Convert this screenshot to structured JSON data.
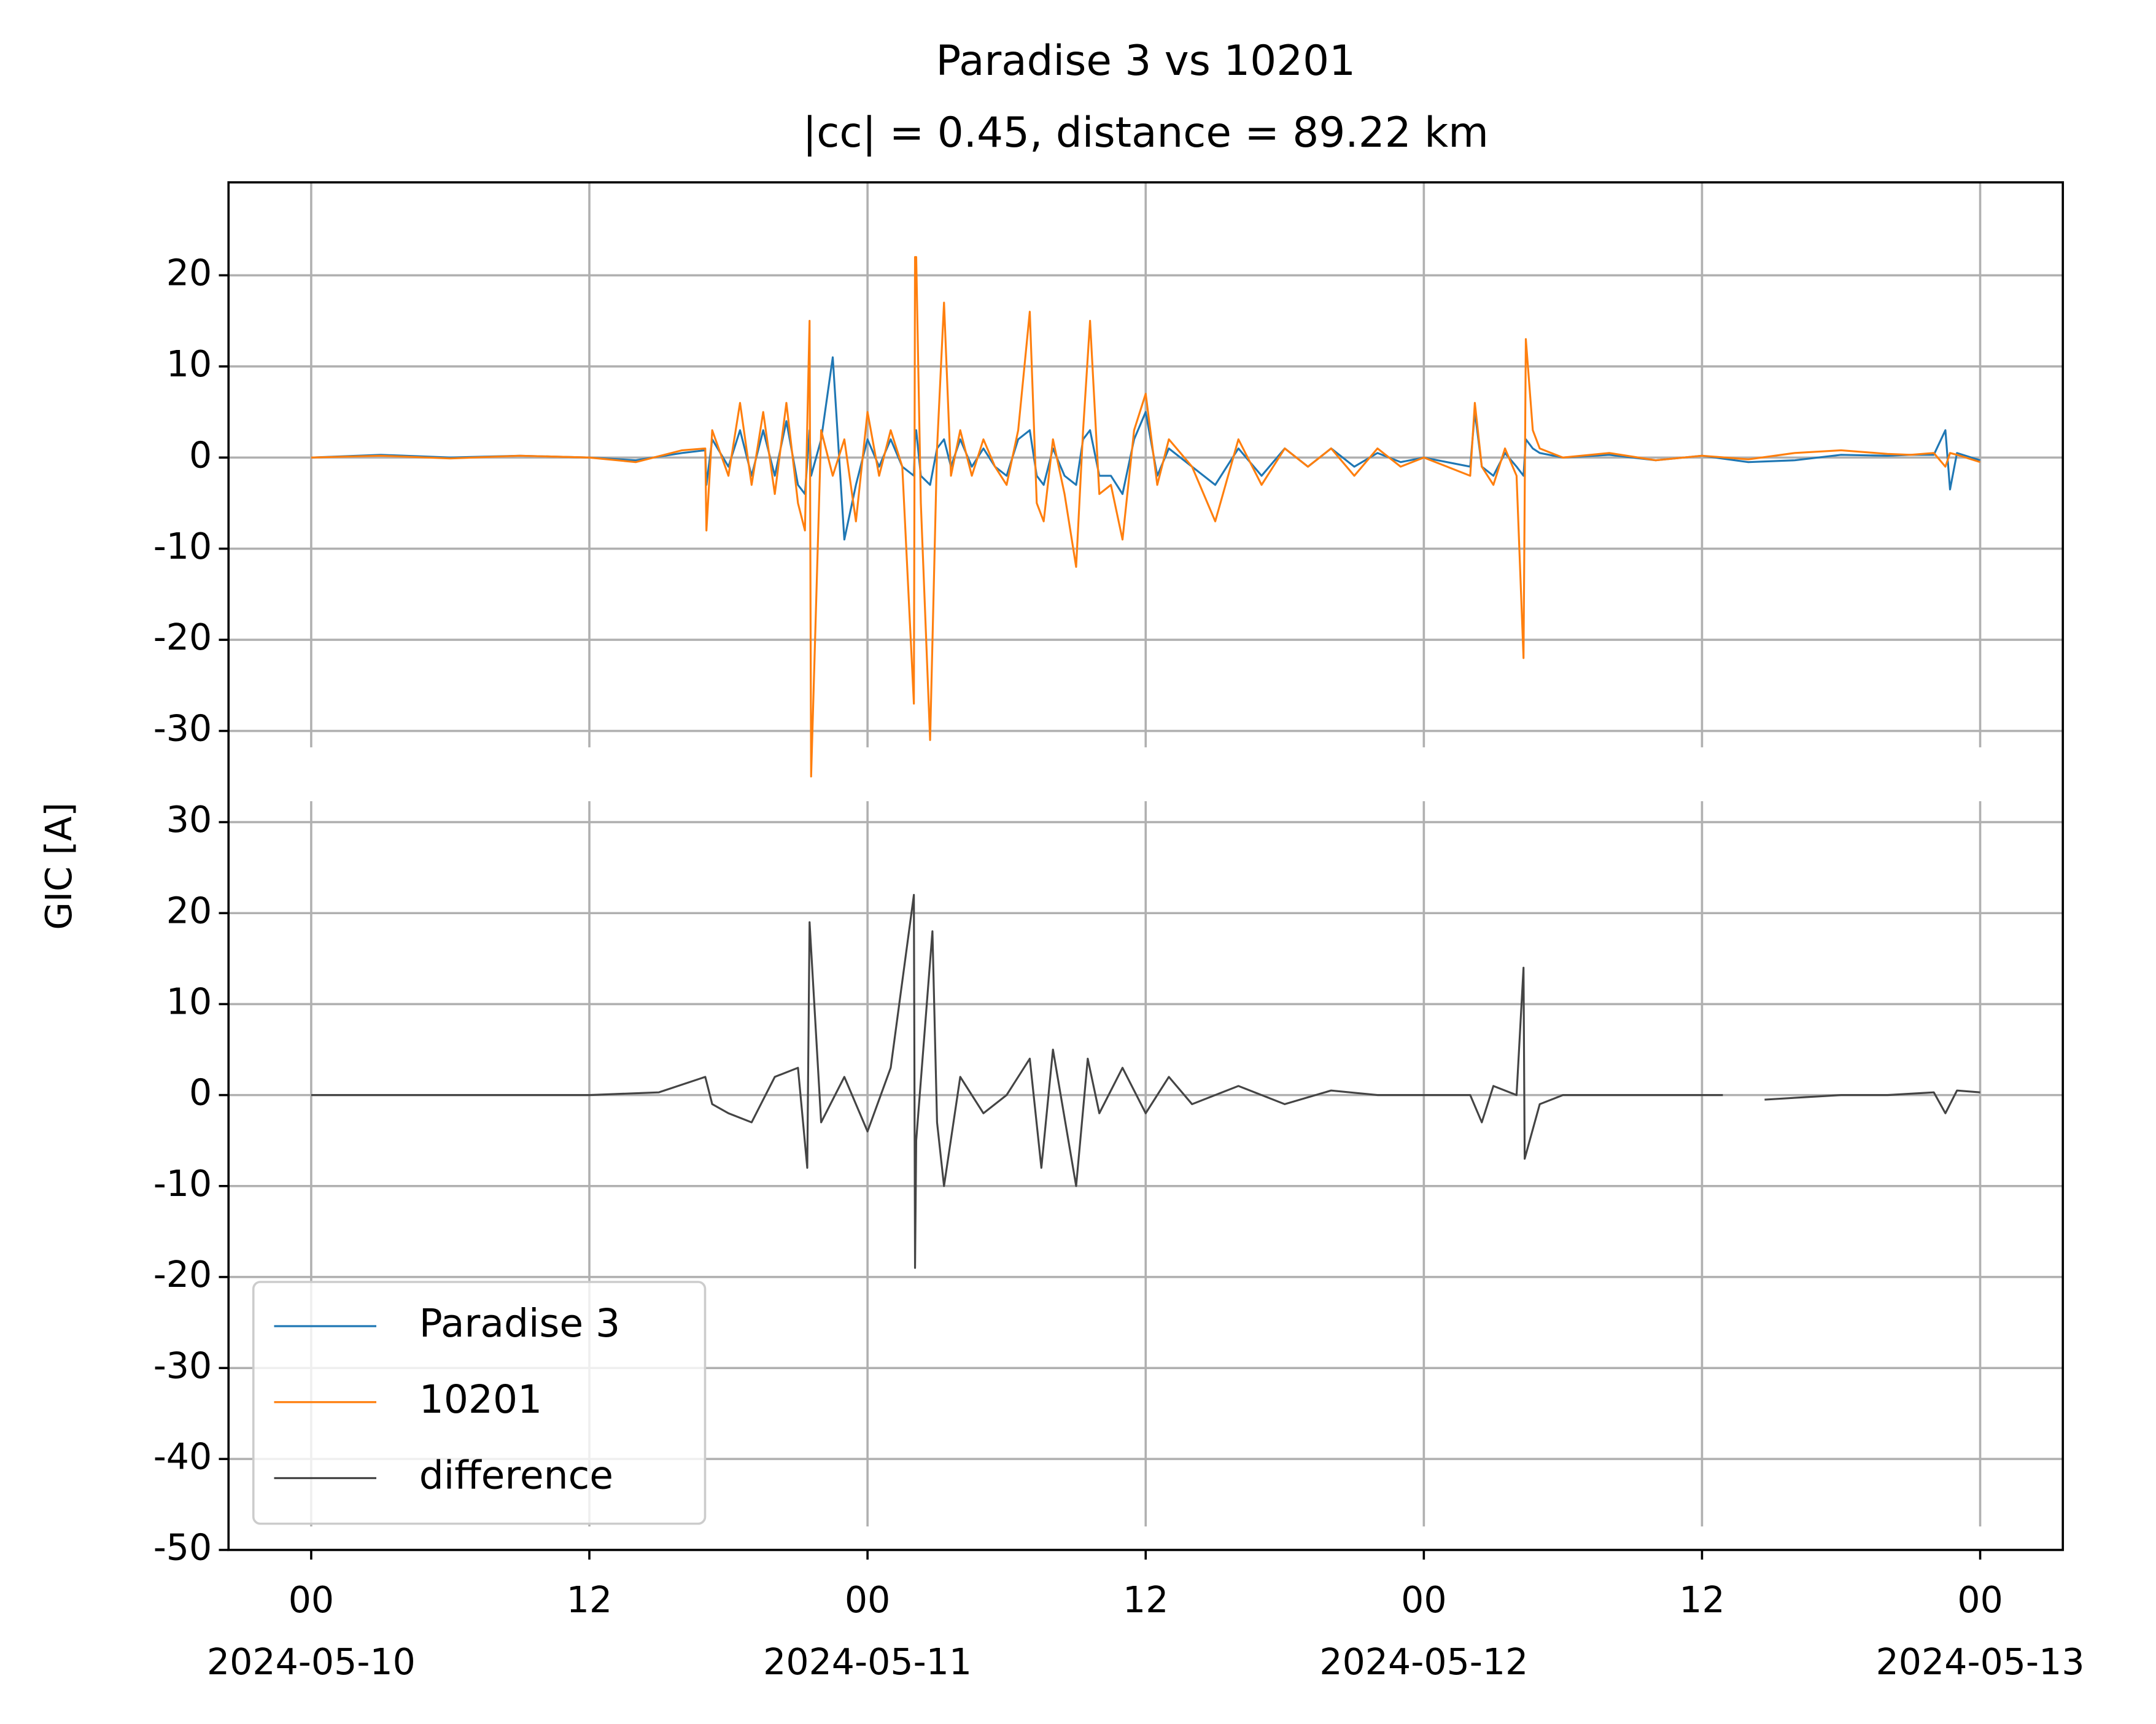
{
  "chart_data": [
    {
      "type": "line",
      "title": "Paradise 3 vs 10201",
      "subtitle": "|cc| = 0.45, distance = 89.22 km",
      "grid": true,
      "ylim": [
        -31.8,
        30.2
      ],
      "yticks": [
        -30,
        -20,
        -10,
        0,
        10,
        20
      ],
      "x": [
        "2024-05-10 00:00",
        "2024-05-10 03:00",
        "2024-05-10 06:00",
        "2024-05-10 09:00",
        "2024-05-10 12:00",
        "2024-05-10 14:00",
        "2024-05-10 16:00",
        "2024-05-10 17:00",
        "2024-05-10 17:03",
        "2024-05-10 17:18",
        "2024-05-10 18:00",
        "2024-05-10 18:30",
        "2024-05-10 19:00",
        "2024-05-10 19:30",
        "2024-05-10 20:00",
        "2024-05-10 20:30",
        "2024-05-10 21:00",
        "2024-05-10 21:18",
        "2024-05-10 21:30",
        "2024-05-10 21:34",
        "2024-05-10 22:00",
        "2024-05-10 22:30",
        "2024-05-10 23:00",
        "2024-05-10 23:30",
        "2024-05-11 00:00",
        "2024-05-11 00:30",
        "2024-05-11 01:00",
        "2024-05-11 01:30",
        "2024-05-11 02:00",
        "2024-05-11 02:03",
        "2024-05-11 02:06",
        "2024-05-11 02:18",
        "2024-05-11 02:42",
        "2024-05-11 03:00",
        "2024-05-11 03:18",
        "2024-05-11 03:36",
        "2024-05-11 04:00",
        "2024-05-11 04:30",
        "2024-05-11 05:00",
        "2024-05-11 05:30",
        "2024-05-11 06:00",
        "2024-05-11 06:30",
        "2024-05-11 07:00",
        "2024-05-11 07:18",
        "2024-05-11 07:36",
        "2024-05-11 08:00",
        "2024-05-11 08:30",
        "2024-05-11 09:00",
        "2024-05-11 09:18",
        "2024-05-11 09:36",
        "2024-05-11 10:00",
        "2024-05-11 10:30",
        "2024-05-11 11:00",
        "2024-05-11 11:30",
        "2024-05-11 12:00",
        "2024-05-11 12:30",
        "2024-05-11 13:00",
        "2024-05-11 14:00",
        "2024-05-11 15:00",
        "2024-05-11 16:00",
        "2024-05-11 17:00",
        "2024-05-11 18:00",
        "2024-05-11 19:00",
        "2024-05-11 20:00",
        "2024-05-11 21:00",
        "2024-05-11 22:00",
        "2024-05-11 23:00",
        "2024-05-12 00:00",
        "2024-05-12 01:00",
        "2024-05-12 02:00",
        "2024-05-12 02:12",
        "2024-05-12 02:30",
        "2024-05-12 03:00",
        "2024-05-12 03:30",
        "2024-05-12 04:00",
        "2024-05-12 04:18",
        "2024-05-12 04:24",
        "2024-05-12 04:42",
        "2024-05-12 05:00",
        "2024-05-12 06:00",
        "2024-05-12 08:00",
        "2024-05-12 10:00",
        "2024-05-12 12:00",
        "2024-05-12 14:00",
        "2024-05-12 16:00",
        "2024-05-12 18:00",
        "2024-05-12 20:00",
        "2024-05-12 21:00",
        "2024-05-12 22:00",
        "2024-05-12 22:30",
        "2024-05-12 22:42",
        "2024-05-12 23:00",
        "2024-05-13 00:00"
      ],
      "series": [
        {
          "name": "Paradise 3",
          "color": "#1f77b4",
          "values": [
            0,
            0.3,
            0,
            0.2,
            0,
            -0.3,
            0.5,
            0.8,
            -3,
            2,
            -1,
            3,
            -2,
            3,
            -2,
            4,
            -3,
            -4,
            3,
            -2,
            2,
            11,
            -9,
            -3,
            2,
            -1,
            2,
            -1,
            -2,
            2,
            3,
            -2,
            -3,
            1,
            2,
            -1,
            2,
            -1,
            1,
            -1,
            -2,
            2,
            3,
            -2,
            -3,
            1,
            -2,
            -3,
            2,
            3,
            -2,
            -2,
            -4,
            2,
            5,
            -2,
            1,
            -1,
            -3,
            1,
            -2,
            1,
            -1,
            1,
            -1,
            0.5,
            -0.5,
            0,
            -0.5,
            -1,
            5,
            -1,
            -2,
            0.5,
            -1,
            -2,
            2,
            1,
            0.5,
            0,
            0.3,
            -0.3,
            0.2,
            -0.5,
            -0.3,
            0.3,
            0.2,
            0.3,
            0.3,
            3,
            -3.5,
            0.5,
            -0.3
          ]
        },
        {
          "name": "10201",
          "color": "#ff7f0e",
          "values": [
            0,
            0.2,
            -0.1,
            0.2,
            0,
            -0.5,
            0.8,
            1,
            -8,
            3,
            -2,
            6,
            -3,
            5,
            -4,
            6,
            -5,
            -8,
            15,
            -35,
            3,
            -2,
            2,
            -7,
            5,
            -2,
            3,
            -1,
            -27,
            22,
            22,
            -5,
            -31,
            1,
            17,
            -2,
            3,
            -2,
            2,
            -1,
            -3,
            3,
            16,
            -5,
            -7,
            2,
            -4,
            -12,
            3,
            15,
            -4,
            -3,
            -9,
            3,
            7,
            -3,
            2,
            -1,
            -7,
            2,
            -3,
            1,
            -1,
            1,
            -2,
            1,
            -1,
            0,
            -1,
            -2,
            6,
            -1,
            -3,
            1,
            -2,
            -22,
            13,
            3,
            1,
            0,
            0.5,
            -0.3,
            0.2,
            -0.2,
            0.5,
            0.8,
            0.4,
            0.3,
            0.5,
            -1,
            0.5,
            0.3,
            -0.5
          ]
        }
      ]
    },
    {
      "type": "line",
      "ylabel": "GIC [A]",
      "grid": true,
      "legend": "lower left",
      "xlim": [
        "2024-05-09 20:26",
        "2024-05-13 03:34"
      ],
      "xticks": [
        {
          "value": "2024-05-10 00:00",
          "label": "00",
          "sublabel": "2024-05-10"
        },
        {
          "value": "2024-05-10 12:00",
          "label": "12"
        },
        {
          "value": "2024-05-11 00:00",
          "label": "00",
          "sublabel": "2024-05-11"
        },
        {
          "value": "2024-05-11 12:00",
          "label": "12"
        },
        {
          "value": "2024-05-12 00:00",
          "label": "00",
          "sublabel": "2024-05-12"
        },
        {
          "value": "2024-05-12 12:00",
          "label": "12"
        },
        {
          "value": "2024-05-13 00:00",
          "label": "00",
          "sublabel": "2024-05-13"
        }
      ],
      "ylim": [
        -50,
        32.3
      ],
      "yticks": [
        -50,
        -40,
        -30,
        -20,
        -10,
        0,
        10,
        20,
        30
      ],
      "x": [
        "2024-05-10 00:00",
        "2024-05-10 03:00",
        "2024-05-10 06:00",
        "2024-05-10 09:00",
        "2024-05-10 12:00",
        "2024-05-10 15:00",
        "2024-05-10 17:00",
        "2024-05-10 17:18",
        "2024-05-10 18:00",
        "2024-05-10 19:00",
        "2024-05-10 20:00",
        "2024-05-10 21:00",
        "2024-05-10 21:24",
        "2024-05-10 21:30",
        "2024-05-10 22:00",
        "2024-05-10 23:00",
        "2024-05-11 00:00",
        "2024-05-11 01:00",
        "2024-05-11 02:00",
        "2024-05-11 02:03",
        "2024-05-11 02:06",
        "2024-05-11 02:48",
        "2024-05-11 03:00",
        "2024-05-11 03:18",
        "2024-05-11 04:00",
        "2024-05-11 05:00",
        "2024-05-11 06:00",
        "2024-05-11 07:00",
        "2024-05-11 07:30",
        "2024-05-11 08:00",
        "2024-05-11 09:00",
        "2024-05-11 09:30",
        "2024-05-11 10:00",
        "2024-05-11 11:00",
        "2024-05-11 12:00",
        "2024-05-11 13:00",
        "2024-05-11 14:00",
        "2024-05-11 16:00",
        "2024-05-11 18:00",
        "2024-05-11 20:00",
        "2024-05-11 22:00",
        "2024-05-12 00:00",
        "2024-05-12 02:00",
        "2024-05-12 02:30",
        "2024-05-12 03:00",
        "2024-05-12 04:00",
        "2024-05-12 04:18",
        "2024-05-12 04:21",
        "2024-05-12 05:00",
        "2024-05-12 06:00",
        "2024-05-12 08:00",
        "2024-05-12 10:00",
        "2024-05-12 12:00",
        "2024-05-12 12:54",
        "2024-05-12 13:30",
        "2024-05-12 14:42",
        "2024-05-12 16:00",
        "2024-05-12 18:00",
        "2024-05-12 20:00",
        "2024-05-12 22:00",
        "2024-05-12 22:30",
        "2024-05-12 23:00",
        "2024-05-13 00:00"
      ],
      "series": [
        {
          "name": "difference",
          "color": "#444444",
          "values": [
            0,
            0,
            0,
            0,
            0,
            0.3,
            2,
            -1,
            -2,
            -3,
            2,
            3,
            -8,
            19,
            -3,
            2,
            -4,
            3,
            22,
            -19,
            -5,
            18,
            -3,
            -10,
            2,
            -2,
            0,
            4,
            -8,
            5,
            -10,
            4,
            -2,
            3,
            -2,
            2,
            -1,
            1,
            -1,
            0.5,
            0,
            0,
            0,
            -3,
            1,
            0,
            14,
            -7,
            -1,
            0,
            0,
            0,
            0,
            0,
            null,
            -0.5,
            -0.3,
            0,
            0,
            0.3,
            -2,
            0.5,
            0.3
          ]
        }
      ]
    }
  ]
}
